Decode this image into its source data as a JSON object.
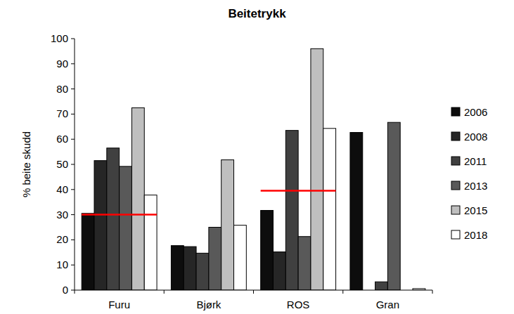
{
  "chart_data": {
    "type": "bar",
    "title": "Beitetrykk",
    "y_label": "% beite skudd",
    "categories": [
      "Furu",
      "Bjørk",
      "ROS",
      "Gran"
    ],
    "series": [
      {
        "name": "2006",
        "color": "#0d0d0d",
        "values": [
          30.5,
          17.7,
          31.7,
          62.7
        ]
      },
      {
        "name": "2008",
        "color": "#262626",
        "values": [
          51.5,
          17.3,
          15.2,
          null
        ]
      },
      {
        "name": "2011",
        "color": "#404040",
        "values": [
          56.5,
          14.7,
          63.5,
          3.3
        ]
      },
      {
        "name": "2013",
        "color": "#595959",
        "values": [
          49.2,
          25,
          21.3,
          66.7
        ]
      },
      {
        "name": "2015",
        "color": "#bfbfbf",
        "values": [
          72.5,
          51.8,
          96,
          null
        ]
      },
      {
        "name": "2018",
        "color": "#ffffff",
        "values": [
          37.8,
          25.8,
          64.3,
          0.6
        ]
      }
    ],
    "targets": [
      {
        "category": "Furu",
        "value": 30,
        "color": "#ff0000"
      },
      {
        "category": "ROS",
        "value": 39.5,
        "color": "#ff0000"
      }
    ],
    "ylim": [
      0,
      100
    ],
    "yticks": [
      0,
      10,
      20,
      30,
      40,
      50,
      60,
      70,
      80,
      90,
      100
    ],
    "grid": false,
    "legend": "right"
  }
}
